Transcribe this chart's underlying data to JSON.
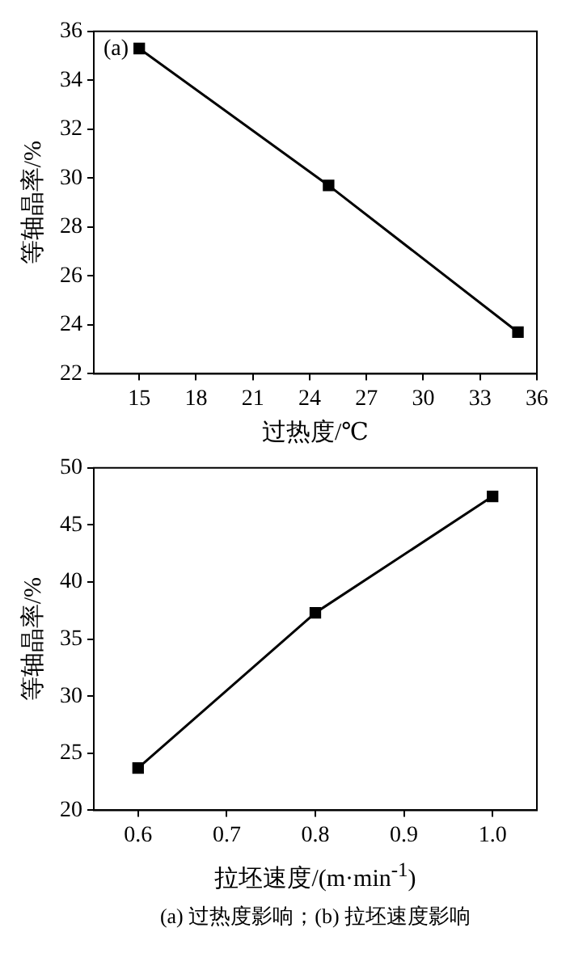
{
  "chart_data": [
    {
      "type": "line",
      "x": [
        15,
        25,
        35
      ],
      "values": [
        35.3,
        29.7,
        23.7
      ],
      "color": "#000000",
      "marker": "square",
      "line_style": "solid",
      "grid": false,
      "legend": false,
      "xlabel": "过热度/℃",
      "ylabel": "等轴晶率/%",
      "xlim": [
        12.6,
        36
      ],
      "xticks": [
        15,
        18,
        21,
        24,
        27,
        30,
        33,
        36
      ],
      "ylim": [
        22,
        36
      ],
      "yticks": [
        22,
        24,
        26,
        28,
        30,
        32,
        34,
        36
      ],
      "annotations": [
        "(a)"
      ]
    },
    {
      "type": "line",
      "x": [
        0.6,
        0.8,
        1.0
      ],
      "values": [
        23.7,
        37.3,
        47.5
      ],
      "color": "#000000",
      "marker": "square",
      "line_style": "solid",
      "grid": false,
      "legend": false,
      "xlabel": "拉坯速度/(m·min$^{-1}$)",
      "ylabel": "等轴晶率/%",
      "xlim": [
        0.55,
        1.05
      ],
      "xticks": [
        {
          "value": 0.6,
          "label": "0.6"
        },
        {
          "value": 0.7,
          "label": "0.7"
        },
        {
          "value": 0.8,
          "label": "0.8"
        },
        {
          "value": 0.9,
          "label": "0.9"
        },
        {
          "value": 1.0,
          "label": "1.0"
        }
      ],
      "ylim": [
        20,
        50
      ],
      "yticks": [
        20,
        25,
        30,
        35,
        40,
        45,
        50
      ],
      "annotations": [
        "(a) 过热度影响；(b) 拉坯速度影响"
      ]
    }
  ]
}
